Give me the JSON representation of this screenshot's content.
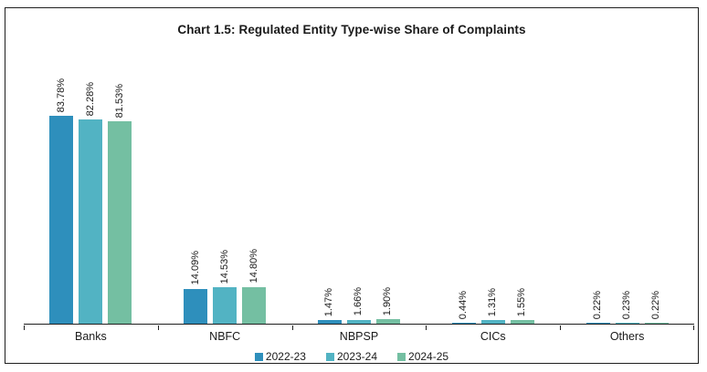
{
  "title": "Chart 1.5: Regulated Entity Type-wise Share of Complaints",
  "chart_data": {
    "type": "bar",
    "title": "Chart 1.5: Regulated Entity Type-wise Share of Complaints",
    "categories": [
      "Banks",
      "NBFC",
      "NBPSP",
      "CICs",
      "Others"
    ],
    "series": [
      {
        "name": "2022-23",
        "color": "#2E8FBC",
        "values": [
          83.78,
          14.09,
          1.47,
          0.44,
          0.22
        ],
        "labels": [
          "83.78%",
          "14.09%",
          "1.47%",
          "0.44%",
          "0.22%"
        ]
      },
      {
        "name": "2023-24",
        "color": "#52B3C3",
        "values": [
          82.28,
          14.53,
          1.66,
          1.31,
          0.23
        ],
        "labels": [
          "82.28%",
          "14.53%",
          "1.66%",
          "1.31%",
          "0.23%"
        ]
      },
      {
        "name": "2024-25",
        "color": "#74BFA2",
        "values": [
          81.53,
          14.8,
          1.9,
          1.55,
          0.22
        ],
        "labels": [
          "81.53%",
          "14.80%",
          "1.90%",
          "1.55%",
          "0.22%"
        ]
      }
    ],
    "xlabel": "",
    "ylabel": "",
    "ylim": [
      0,
      90
    ],
    "grid": false,
    "legend_position": "bottom",
    "value_label_rotation": 90
  }
}
